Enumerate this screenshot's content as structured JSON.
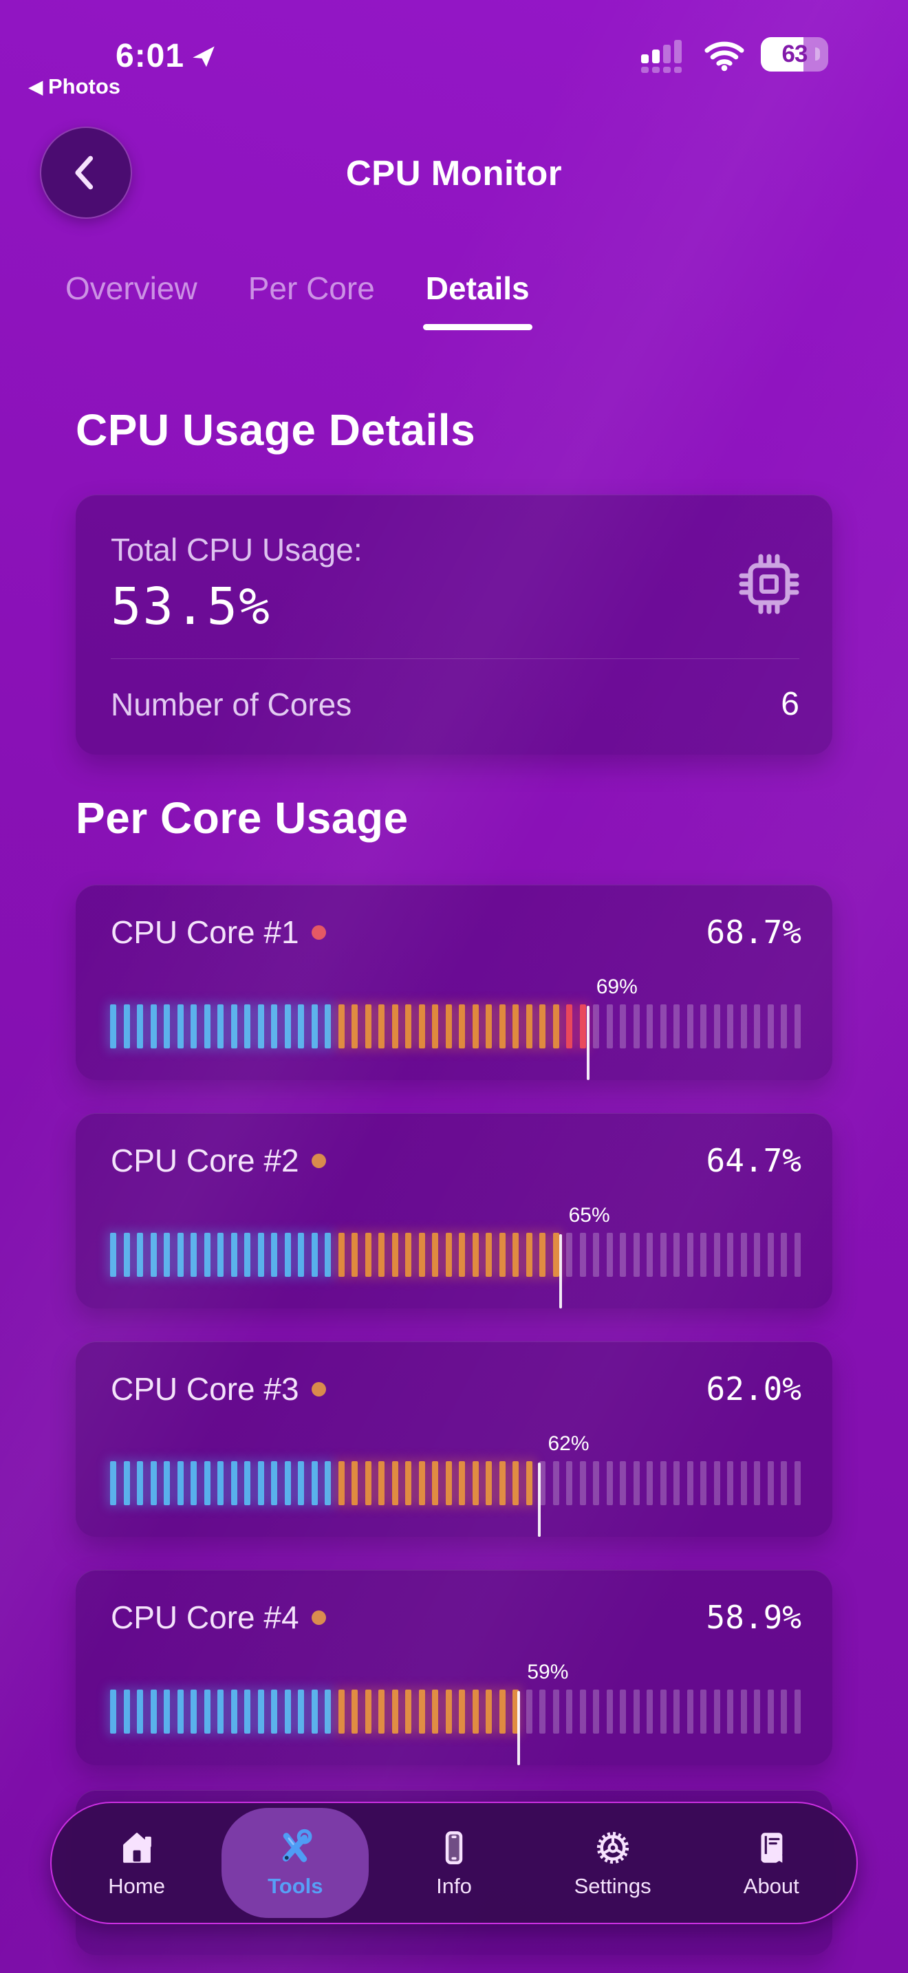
{
  "colors": {
    "tick_blue": "#59b1ec",
    "tick_orange": "#e08a3e",
    "tick_red": "#e9465a",
    "tick_empty": "rgba(255,255,255,0.24)",
    "dot_high": "#e4525e",
    "dot_medium": "#d98a4b",
    "accent_blue": "#57a0f6",
    "nav_border": "#cb2fe2"
  },
  "status_bar": {
    "time": "6:01",
    "back_triangle": "◀",
    "back_app": "Photos",
    "battery_percent": 63,
    "battery_label": "63"
  },
  "header": {
    "title": "CPU Monitor"
  },
  "tabs": [
    {
      "label": "Overview",
      "active": false
    },
    {
      "label": "Per Core",
      "active": false
    },
    {
      "label": "Details",
      "active": true
    }
  ],
  "details_section": {
    "title": "CPU Usage Details",
    "card": {
      "total_label": "Total CPU Usage:",
      "total_value": "53.5%",
      "cores_label": "Number of Cores",
      "cores_value": "6"
    }
  },
  "per_core_section": {
    "title": "Per Core Usage",
    "tick_count": 52,
    "cores": [
      {
        "name": "CPU Core #1",
        "value": "68.7%",
        "pct": 68.7,
        "marker": "69%",
        "level": "high"
      },
      {
        "name": "CPU Core #2",
        "value": "64.7%",
        "pct": 64.7,
        "marker": "65%",
        "level": "medium"
      },
      {
        "name": "CPU Core #3",
        "value": "62.0%",
        "pct": 62.0,
        "marker": "62%",
        "level": "medium"
      },
      {
        "name": "CPU Core #4",
        "value": "58.9%",
        "pct": 58.9,
        "marker": "59%",
        "level": "medium"
      }
    ]
  },
  "nav": {
    "items": [
      {
        "label": "Home",
        "icon": "home-icon",
        "active": false
      },
      {
        "label": "Tools",
        "icon": "tools-icon",
        "active": true
      },
      {
        "label": "Info",
        "icon": "phone-icon",
        "active": false
      },
      {
        "label": "Settings",
        "icon": "gear-icon",
        "active": false
      },
      {
        "label": "About",
        "icon": "book-icon",
        "active": false
      }
    ]
  }
}
